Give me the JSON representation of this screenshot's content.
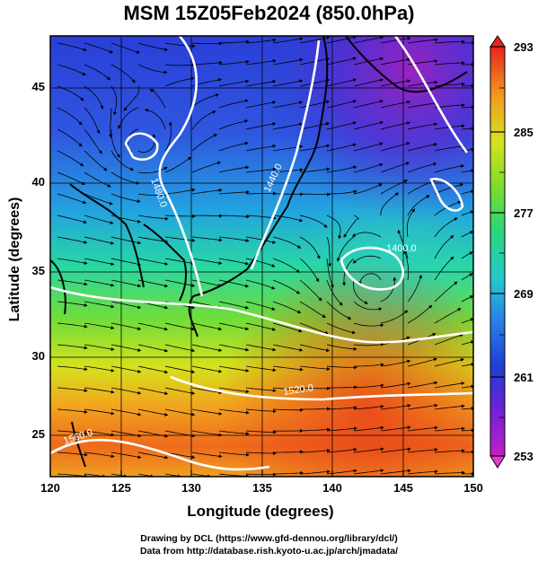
{
  "title": "MSM 15Z05Feb2024 (850.0hPa)",
  "axes": {
    "xlabel": "Longitude (degrees)",
    "ylabel": "Latitude  (degrees)",
    "xticks": [
      "120",
      "125",
      "130",
      "135",
      "140",
      "145",
      "150"
    ],
    "yticks": [
      "45",
      "40",
      "35",
      "30",
      "25"
    ]
  },
  "colorbar": {
    "ticks": [
      "293",
      "285",
      "277",
      "269",
      "261",
      "253"
    ],
    "min": 253,
    "max": 293
  },
  "contour_labels": [
    "1480.0",
    "1440.0",
    "1400.0",
    "1520.0",
    "1560.0"
  ],
  "credits": {
    "line1": "Drawing by DCL (https://www.gfd-dennou.org/library/dcl/)",
    "line2": "Data from http://database.rish.kyoto-u.ac.jp/arch/jmadata/"
  },
  "colors": {
    "cold": "#9b1fb8",
    "cool": "#2a44d8",
    "mid": "#1ec8c8",
    "warm": "#9ae02a",
    "hot": "#ee5a1a"
  }
}
